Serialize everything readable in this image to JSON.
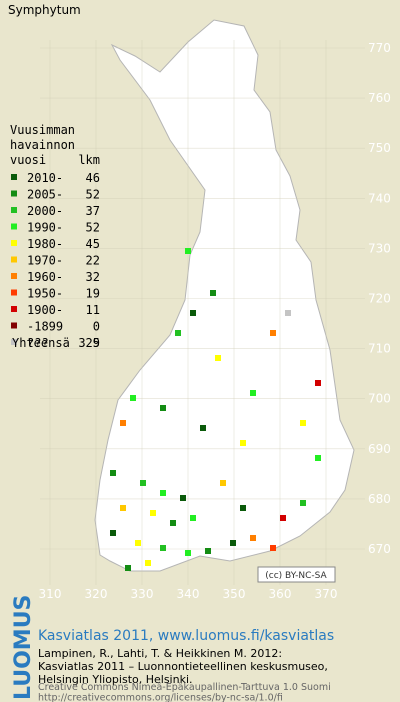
{
  "title": "Symphytum",
  "legend": {
    "header": [
      "Vuusimman",
      "havainnon",
      "vuosi"
    ],
    "count_header": "lkm",
    "entries": [
      {
        "label": "2010-",
        "count": 46,
        "color": "#0a5a0a"
      },
      {
        "label": "2005-",
        "count": 52,
        "color": "#138c13"
      },
      {
        "label": "2000-",
        "count": 37,
        "color": "#22c022"
      },
      {
        "label": "1990-",
        "count": 52,
        "color": "#22ee22"
      },
      {
        "label": "1980-",
        "count": 45,
        "color": "#ffff00"
      },
      {
        "label": "1970-",
        "count": 22,
        "color": "#ffc800"
      },
      {
        "label": "1960-",
        "count": 32,
        "color": "#ff7f00"
      },
      {
        "label": "1950-",
        "count": 19,
        "color": "#ff3c00"
      },
      {
        "label": "1900-",
        "count": 11,
        "color": "#d20000"
      },
      {
        "label": "-1899",
        "count": 0,
        "color": "#820000"
      },
      {
        "label": "???",
        "count": 9,
        "color": "#c4c4c4"
      }
    ],
    "total_label": "Yhteensä",
    "total": 325
  },
  "map": {
    "xticks": [
      310,
      320,
      330,
      340,
      350,
      360,
      370
    ],
    "yticks": [
      670,
      680,
      690,
      700,
      710,
      720,
      730,
      740,
      750,
      760,
      770
    ],
    "badge": "(cc) BY-NC-SA"
  },
  "footer": {
    "logo": "LUOMUS",
    "link": "Kasviatlas 2011, www.luomus.fi/kasviatlas",
    "citation": [
      "Lampinen, R., Lahti, T. & Heikkinen M. 2012:",
      "Kasviatlas 2011 – Luonnontieteellinen keskusmuseo,",
      "Helsingin Yliopisto, Helsinki."
    ],
    "license": [
      "Creative Commons Nimeä-Epäkaupallinen-Tarttuva 1.0 Suomi",
      "http://creativecommons.org/licenses/by-nc-sa/1.0/fi"
    ]
  }
}
